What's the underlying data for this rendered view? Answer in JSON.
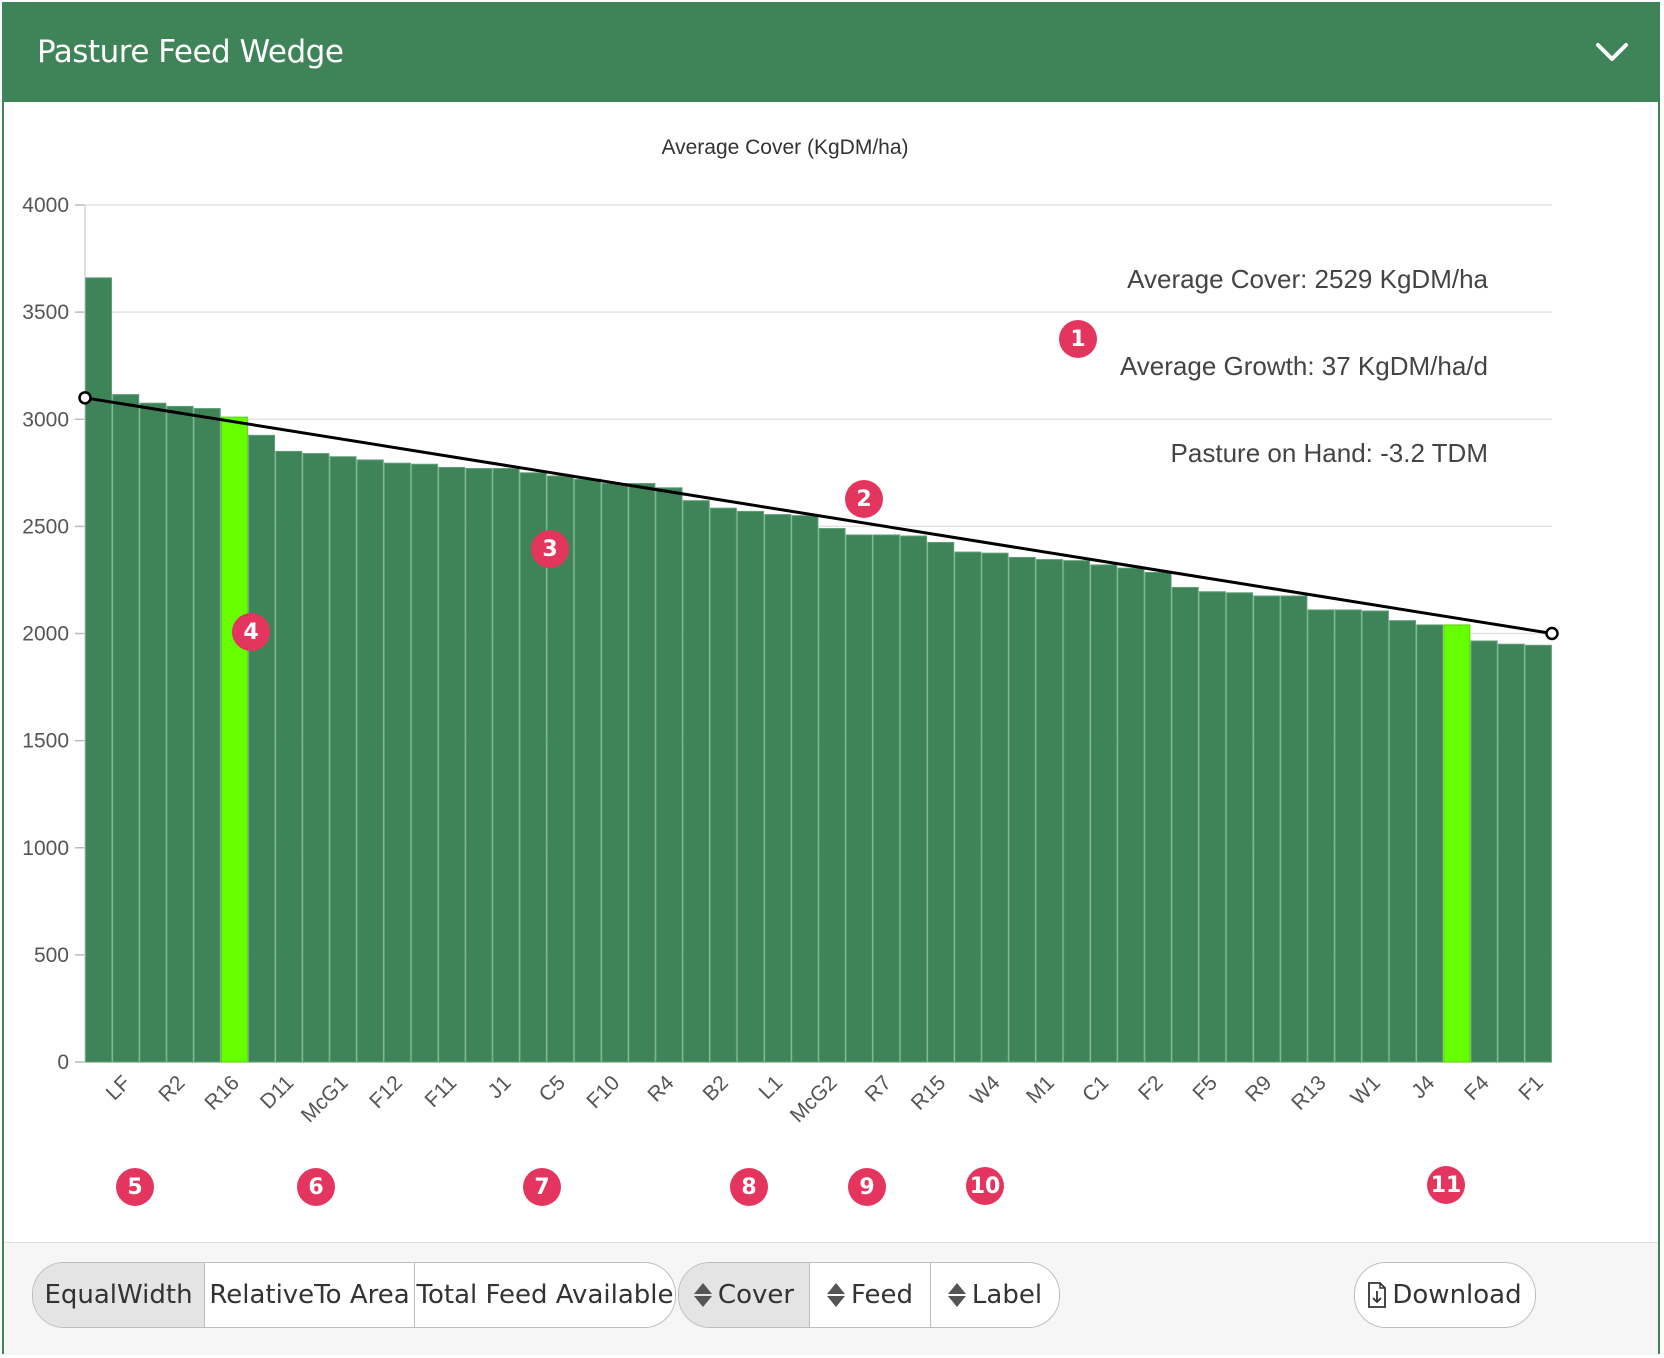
{
  "header": {
    "title": "Pasture Feed Wedge",
    "collapse_icon": "chevron-down-icon"
  },
  "colors": {
    "brand": "#3f8459",
    "bar": "#3f8459",
    "highlight": "#66ff00",
    "marker": "#e4355f",
    "line": "#000000"
  },
  "chart_data": {
    "type": "bar",
    "title": "Average Cover (KgDM/ha)",
    "ylim": [
      0,
      4000
    ],
    "yticks": [
      0,
      500,
      1000,
      1500,
      2000,
      2500,
      3000,
      3500,
      4000
    ],
    "grid": true,
    "categories": [
      "",
      "LF",
      "",
      "R2",
      "",
      "R16",
      "",
      "D11",
      "",
      "McG1",
      "",
      "F12",
      "",
      "F11",
      "",
      "J1",
      "",
      "C5",
      "",
      "F10",
      "",
      "R4",
      "",
      "B2",
      "",
      "L1",
      "",
      "McG2",
      "",
      "R7",
      "",
      "R15",
      "",
      "W4",
      "",
      "M1",
      "",
      "C1",
      "",
      "F2",
      "",
      "F5",
      "",
      "R9",
      "",
      "R13",
      "",
      "W1",
      "",
      "J4",
      "",
      "F4",
      "",
      "F1"
    ],
    "values": [
      3660,
      3115,
      3075,
      3060,
      3050,
      3010,
      2925,
      2850,
      2840,
      2825,
      2810,
      2795,
      2790,
      2775,
      2770,
      2770,
      2750,
      2735,
      2720,
      2700,
      2700,
      2680,
      2620,
      2585,
      2570,
      2555,
      2550,
      2490,
      2460,
      2460,
      2455,
      2425,
      2380,
      2375,
      2355,
      2345,
      2340,
      2320,
      2305,
      2285,
      2215,
      2195,
      2190,
      2175,
      2175,
      2110,
      2110,
      2105,
      2060,
      2040,
      2040,
      1965,
      1950,
      1945
    ],
    "highlighted_indices": [
      5,
      50
    ],
    "target_line": {
      "start": 3100,
      "end": 2000
    },
    "annotations": [
      "Average Cover: 2529 KgDM/ha",
      "Average Growth: 37 KgDM/ha/d",
      "Pasture on Hand: -3.2 TDM"
    ]
  },
  "toolbar": {
    "group1": [
      {
        "label": "EqualWidth",
        "active": true
      },
      {
        "label": "RelativeTo Area",
        "active": false
      },
      {
        "label": "Total Feed Available",
        "active": false
      }
    ],
    "group2": [
      {
        "label": "Cover",
        "active": true,
        "icon": "sort-icon"
      },
      {
        "label": "Feed",
        "active": false,
        "icon": "sort-icon"
      },
      {
        "label": "Label",
        "active": false,
        "icon": "sort-icon"
      }
    ],
    "download_label": "Download",
    "download_icon": "download-file-icon"
  },
  "markers": [
    "1",
    "2",
    "3",
    "4",
    "5",
    "6",
    "7",
    "8",
    "9",
    "10",
    "11"
  ]
}
